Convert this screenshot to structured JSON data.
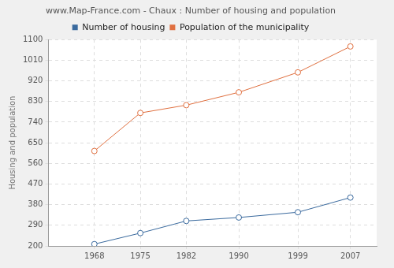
{
  "chart_data": {
    "type": "line",
    "title": "www.Map-France.com - Chaux : Number of housing and population",
    "y_label": "Housing and population",
    "x": [
      1968,
      1975,
      1982,
      1990,
      1999,
      2007
    ],
    "series": [
      {
        "name": "Number of housing",
        "color": "#3a6a9e",
        "values": [
          208,
          256,
          309,
          324,
          347,
          411
        ]
      },
      {
        "name": "Population of the municipality",
        "color": "#e07040",
        "values": [
          614,
          780,
          814,
          870,
          957,
          1070
        ]
      }
    ],
    "xlim": [
      1961,
      2011
    ],
    "xticks": [
      1968,
      1975,
      1982,
      1990,
      1999,
      2007
    ],
    "ylim": [
      200,
      1100
    ],
    "yticks": [
      200,
      290,
      380,
      470,
      560,
      650,
      740,
      830,
      920,
      1010,
      1100
    ],
    "grid": true,
    "legend": "top",
    "marker": "circle"
  }
}
